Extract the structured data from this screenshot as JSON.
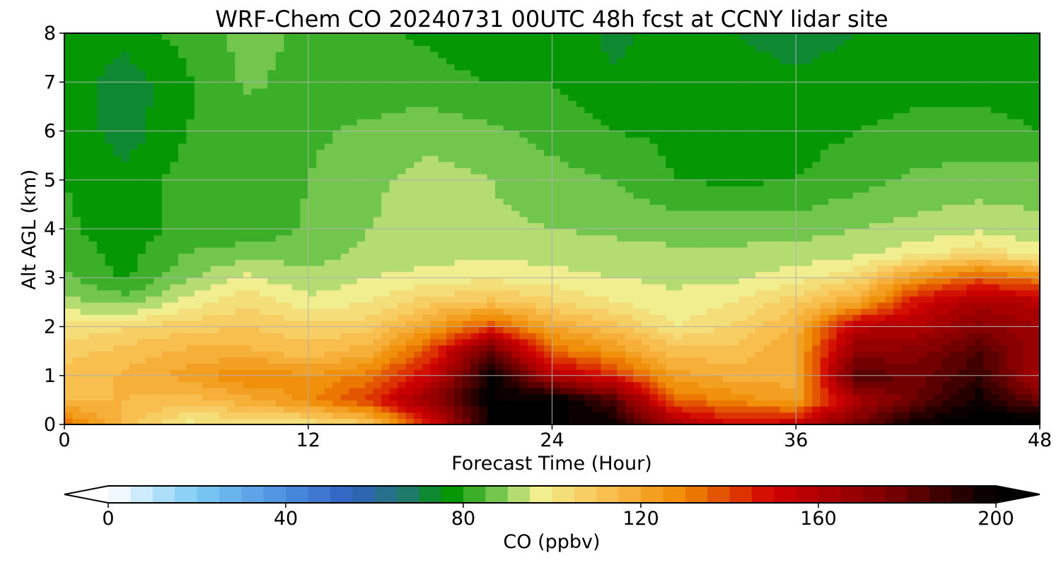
{
  "chart_data": {
    "type": "heatmap",
    "title": "WRF-Chem CO  20240731 00UTC 48h fcst at CCNY lidar site",
    "xlabel": "Forecast Time (Hour)",
    "ylabel": "Alt AGL (km)",
    "xlim": [
      0,
      48
    ],
    "ylim": [
      0,
      8
    ],
    "x_ticks": [
      0,
      12,
      24,
      36,
      48
    ],
    "y_ticks": [
      0,
      1,
      2,
      3,
      4,
      5,
      6,
      7,
      8
    ],
    "grid": true,
    "colorbar": {
      "label": "CO  (ppbv)",
      "range": [
        0,
        200
      ],
      "ticks": [
        0,
        40,
        80,
        120,
        160,
        200
      ],
      "extend": "both",
      "stops": [
        {
          "value": 0,
          "color": "#ffffff"
        },
        {
          "value": 20,
          "color": "#7ccaf5"
        },
        {
          "value": 40,
          "color": "#4a8ee0"
        },
        {
          "value": 55,
          "color": "#3060c0"
        },
        {
          "value": 67,
          "color": "#207a70"
        },
        {
          "value": 77,
          "color": "#009600"
        },
        {
          "value": 88,
          "color": "#78c850"
        },
        {
          "value": 97,
          "color": "#f0f090"
        },
        {
          "value": 112,
          "color": "#f8c050"
        },
        {
          "value": 130,
          "color": "#f08800"
        },
        {
          "value": 150,
          "color": "#d00000"
        },
        {
          "value": 175,
          "color": "#800000"
        },
        {
          "value": 200,
          "color": "#000000"
        }
      ]
    },
    "series": [
      {
        "y": 0.0,
        "values": [
          135,
          112,
          98,
          100,
          100,
          108,
          145,
          200,
          200,
          200,
          165,
          150,
          155,
          178,
          200,
          205,
          210
        ]
      },
      {
        "y": 0.5,
        "values": [
          115,
          115,
          112,
          118,
          128,
          142,
          170,
          200,
          205,
          185,
          135,
          128,
          122,
          162,
          180,
          198,
          178
        ]
      },
      {
        "y": 1.0,
        "values": [
          112,
          116,
          122,
          130,
          125,
          132,
          152,
          200,
          160,
          145,
          122,
          118,
          118,
          185,
          178,
          190,
          162
        ]
      },
      {
        "y": 1.5,
        "values": [
          108,
          112,
          116,
          116,
          112,
          118,
          140,
          180,
          135,
          125,
          112,
          112,
          120,
          170,
          172,
          185,
          166
        ]
      },
      {
        "y": 2.0,
        "values": [
          101,
          104,
          108,
          110,
          106,
          108,
          122,
          140,
          120,
          112,
          100,
          106,
          116,
          158,
          160,
          172,
          165
        ]
      },
      {
        "y": 2.5,
        "values": [
          92,
          88,
          97,
          104,
          97,
          100,
          108,
          112,
          106,
          100,
          96,
          100,
          108,
          120,
          150,
          162,
          158
        ]
      },
      {
        "y": 3.0,
        "values": [
          86,
          79,
          89,
          96,
          91,
          95,
          97,
          99,
          97,
          95,
          94,
          94,
          98,
          104,
          126,
          138,
          130
        ]
      },
      {
        "y": 3.5,
        "values": [
          83,
          78,
          85,
          88,
          88,
          91,
          93,
          94,
          93,
          92,
          91,
          91,
          92,
          94,
          98,
          104,
          97
        ]
      },
      {
        "y": 4.0,
        "values": [
          81,
          77,
          82,
          81,
          86,
          90,
          92,
          91,
          90,
          89,
          88,
          88,
          88,
          90,
          92,
          94,
          91
        ]
      },
      {
        "y": 5.0,
        "values": [
          80,
          77,
          82,
          80,
          85,
          89,
          92,
          90,
          87,
          85,
          80,
          79,
          80,
          83,
          86,
          87,
          88
        ]
      },
      {
        "y": 6.0,
        "values": [
          79,
          72,
          80,
          82,
          84,
          86,
          88,
          86,
          83,
          80,
          79,
          78,
          78,
          80,
          82,
          82,
          80
        ]
      },
      {
        "y": 7.0,
        "values": [
          78,
          72,
          79,
          86,
          83,
          82,
          82,
          80,
          80,
          76,
          78,
          77,
          76,
          77,
          78,
          78,
          77
        ]
      },
      {
        "y": 8.0,
        "values": [
          79,
          77,
          82,
          87,
          84,
          81,
          79,
          75,
          80,
          73,
          78,
          75,
          73,
          75,
          78,
          77,
          77
        ]
      }
    ],
    "x": [
      0,
      3,
      6,
      9,
      12,
      15,
      18,
      21,
      24,
      27,
      30,
      33,
      36,
      39,
      42,
      45,
      48
    ]
  }
}
